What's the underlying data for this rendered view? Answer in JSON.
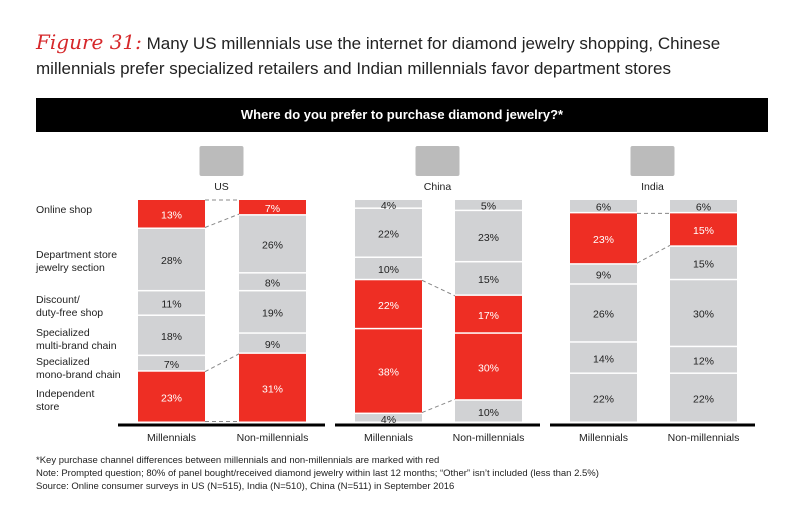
{
  "title": {
    "figure": "Figure 31:",
    "text": "Many US millennials use the internet for diamond jewelry shopping, Chinese millennials prefer specialized retailers and Indian millennials favor department stores"
  },
  "banner": "Where do you prefer to purchase diamond jewelry?*",
  "notes": [
    "*Key purchase channel differences between millennials and non-millennials are marked with red",
    "Note: Prompted question; 80% of panel bought/received diamond jewelry within last 12 months; “Other” isn’t included (less than 2.5%)",
    "Source: Online consumer surveys in US (N=515), India (N=510), China (N=511) in September 2016"
  ],
  "colors": {
    "red": "#ee2e24",
    "grey": "#d1d2d4"
  },
  "chart_data": {
    "type": "bar",
    "stacked": true,
    "unit": "%",
    "categories": [
      "Online shop",
      "Department store jewelry section",
      "Discount/ duty-free shop",
      "Specialized multi-brand chain",
      "Specialized mono-brand chain",
      "Independent store"
    ],
    "groups": [
      "Millennials",
      "Non-millennials"
    ],
    "panels": [
      {
        "country": "US",
        "series": [
          {
            "name": "Millennials",
            "values": [
              13,
              28,
              11,
              18,
              7,
              23
            ]
          },
          {
            "name": "Non-millennials",
            "values": [
              7,
              26,
              8,
              19,
              9,
              31
            ]
          }
        ],
        "highlight": [
          0,
          5
        ]
      },
      {
        "country": "China",
        "series": [
          {
            "name": "Millennials",
            "values": [
              4,
              22,
              10,
              22,
              38,
              4
            ]
          },
          {
            "name": "Non-millennials",
            "values": [
              5,
              23,
              15,
              17,
              30,
              10
            ]
          }
        ],
        "highlight": [
          3,
          4
        ]
      },
      {
        "country": "India",
        "series": [
          {
            "name": "Millennials",
            "values": [
              6,
              23,
              9,
              26,
              14,
              22
            ]
          },
          {
            "name": "Non-millennials",
            "values": [
              6,
              15,
              15,
              30,
              12,
              22
            ]
          }
        ],
        "highlight": [
          1
        ]
      }
    ]
  }
}
